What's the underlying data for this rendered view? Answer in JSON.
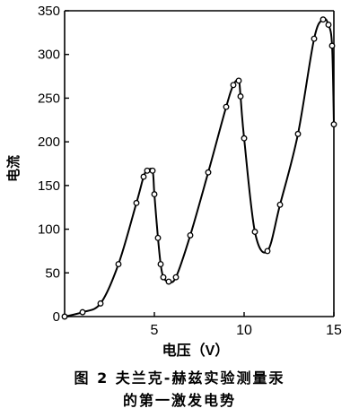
{
  "chart_data": {
    "type": "line",
    "title": "",
    "xlabel": "电压（V）",
    "ylabel": "电流",
    "xlim": [
      0,
      15
    ],
    "ylim": [
      0,
      350
    ],
    "xticks": [
      "5",
      "10",
      "15"
    ],
    "yticks": [
      "0",
      "50",
      "100",
      "150",
      "200",
      "250",
      "300",
      "350"
    ],
    "grid": false,
    "series": [
      {
        "points": [
          [
            0,
            0
          ],
          [
            1,
            5
          ],
          [
            2,
            15
          ],
          [
            3,
            60
          ],
          [
            4,
            130
          ],
          [
            4.4,
            160
          ],
          [
            4.6,
            167
          ],
          [
            4.9,
            167
          ],
          [
            5.0,
            140
          ],
          [
            5.2,
            90
          ],
          [
            5.35,
            60
          ],
          [
            5.5,
            45
          ],
          [
            5.8,
            40
          ],
          [
            6.2,
            45
          ],
          [
            7.0,
            93
          ],
          [
            8.0,
            165
          ],
          [
            9.0,
            240
          ],
          [
            9.4,
            265
          ],
          [
            9.7,
            270
          ],
          [
            9.8,
            252
          ],
          [
            10.0,
            204
          ],
          [
            10.6,
            97
          ],
          [
            11.3,
            75
          ],
          [
            12.0,
            128
          ],
          [
            13.0,
            209
          ],
          [
            13.9,
            318
          ],
          [
            14.4,
            340
          ],
          [
            14.7,
            334
          ],
          [
            14.9,
            310
          ],
          [
            15.0,
            220
          ]
        ]
      }
    ]
  },
  "caption": {
    "line1": "图 2  夫兰克-赫兹实验测量汞",
    "line2": "的第一激发电势"
  }
}
